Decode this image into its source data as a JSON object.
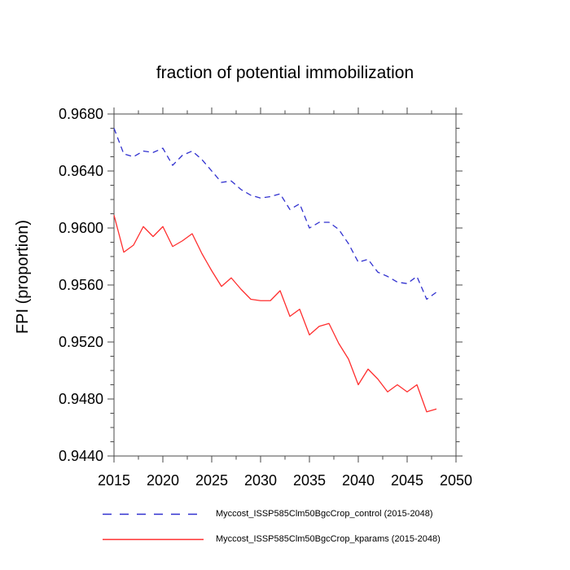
{
  "chart_data": {
    "type": "line",
    "title": "fraction of potential immobilization",
    "xlabel": "",
    "ylabel": "FPI  (proportion)",
    "xlim": [
      2015,
      2050
    ],
    "ylim": [
      0.944,
      0.968
    ],
    "grid": false,
    "legend_position": "below-left",
    "x_ticks": [
      2015,
      2020,
      2025,
      2030,
      2035,
      2040,
      2045,
      2050
    ],
    "x_tick_labels": [
      "2015",
      "2020",
      "2025",
      "2030",
      "2035",
      "2040",
      "2045",
      "2050"
    ],
    "x_minor_step": 2.5,
    "y_ticks": [
      0.944,
      0.948,
      0.952,
      0.956,
      0.96,
      0.964,
      0.968
    ],
    "y_tick_labels": [
      "0.9440",
      "0.9480",
      "0.9520",
      "0.9560",
      "0.9600",
      "0.9640",
      "0.9680"
    ],
    "y_minor_step": 0.001,
    "axis_color": "#4a4a4a",
    "x": [
      2015,
      2016,
      2017,
      2018,
      2019,
      2020,
      2021,
      2022,
      2023,
      2024,
      2025,
      2026,
      2027,
      2028,
      2029,
      2030,
      2031,
      2032,
      2033,
      2034,
      2035,
      2036,
      2037,
      2038,
      2039,
      2040,
      2041,
      2042,
      2043,
      2044,
      2045,
      2046,
      2047,
      2048
    ],
    "series": [
      {
        "name": "Myccost_ISSP585Clm50BgcCrop_control (2015-2048)",
        "color": "#3030cf",
        "style": "dashed",
        "values": [
          0.967,
          0.9652,
          0.965,
          0.9654,
          0.9653,
          0.9656,
          0.9644,
          0.9651,
          0.9654,
          0.9648,
          0.964,
          0.9632,
          0.9633,
          0.9627,
          0.9623,
          0.9621,
          0.9622,
          0.9624,
          0.9613,
          0.9617,
          0.96,
          0.9604,
          0.9604,
          0.9599,
          0.9589,
          0.9576,
          0.9578,
          0.9569,
          0.9566,
          0.9562,
          0.9561,
          0.9566,
          0.955,
          0.9555
        ]
      },
      {
        "name": "Myccost_ISSP585Clm50BgcCrop_kparams (2015-2048)",
        "color": "#ff2e2e",
        "style": "solid",
        "values": [
          0.9609,
          0.9583,
          0.9588,
          0.9601,
          0.9594,
          0.9601,
          0.9587,
          0.9591,
          0.9596,
          0.9582,
          0.957,
          0.9559,
          0.9565,
          0.9557,
          0.955,
          0.9549,
          0.9549,
          0.9556,
          0.9538,
          0.9543,
          0.9525,
          0.9531,
          0.9533,
          0.9519,
          0.9508,
          0.949,
          0.9501,
          0.9494,
          0.9485,
          0.949,
          0.9485,
          0.949,
          0.9471,
          0.9473
        ]
      }
    ]
  }
}
